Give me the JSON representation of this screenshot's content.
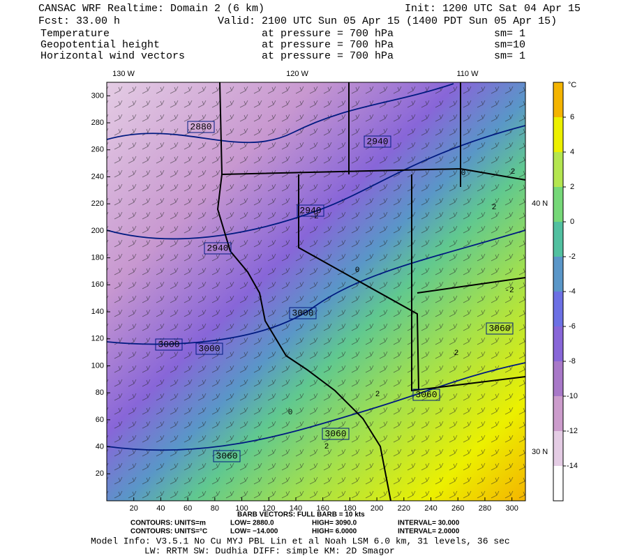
{
  "header": {
    "title": "CANSAC WRF Realtime: Domain 2  (6 km)",
    "init": "Init: 1200 UTC Sat 04 Apr 15",
    "fcst": "Fcst:   33.00 h",
    "valid": "Valid: 2100 UTC Sun 05 Apr 15 (1400 PDT Sun 05 Apr 15)",
    "fields": [
      {
        "name": "Temperature",
        "level": "at pressure =  700 hPa",
        "smooth": "sm= 1"
      },
      {
        "name": "Geopotential height",
        "level": "at pressure =  700 hPa",
        "smooth": "sm=10"
      },
      {
        "name": "Horizontal wind vectors",
        "level": "at pressure =  700 hPa",
        "smooth": "sm= 1"
      }
    ]
  },
  "map": {
    "xlim": [
      0,
      310
    ],
    "ylim": [
      0,
      310
    ],
    "xticks": [
      20,
      40,
      60,
      80,
      100,
      120,
      140,
      160,
      180,
      200,
      220,
      240,
      260,
      280,
      300
    ],
    "yticks": [
      20,
      40,
      60,
      80,
      100,
      120,
      140,
      160,
      180,
      200,
      220,
      240,
      260,
      280,
      300
    ],
    "longitudes": [
      "130 W",
      "120 W",
      "110 W"
    ],
    "latitudes": [
      "40 N",
      "30 N"
    ],
    "height_labels": [
      "2880",
      "2940",
      "2940",
      "2940",
      "3000",
      "3000",
      "3000",
      "3060",
      "3060",
      "3060",
      "3060"
    ],
    "temperature_labels": [
      "0",
      "0",
      "2",
      "2",
      "2",
      "2",
      "-2",
      "-2",
      "2",
      "0"
    ]
  },
  "colorbar": {
    "unit": "°C",
    "clim": [
      -16,
      8
    ],
    "ticks": [
      6,
      4,
      2,
      0,
      -2,
      -4,
      -6,
      -8,
      -10,
      -12,
      -14
    ],
    "colors": [
      "#ffffff",
      "#e4cce4",
      "#cc9ccc",
      "#a878c8",
      "#8866d8",
      "#6c70e4",
      "#5a96c8",
      "#52c0a0",
      "#76d878",
      "#b4e650",
      "#ecf000",
      "#f4b400"
    ]
  },
  "footer": {
    "barbs": "BARB VECTORS:  FULL BARB = 10 kts",
    "contours": [
      [
        "CONTOURS:  UNITS=m",
        "LOW= 2880.0",
        "HIGH= 3090.0",
        "INTERVAL=  30.000"
      ],
      [
        "CONTOURS:  UNITS=°C",
        "LOW= −14.000",
        "HIGH=  6.0000",
        "INTERVAL=  2.0000"
      ]
    ],
    "model_info": "Model Info: V3.5.1    No Cu    MYJ PBL  Lin et al    Noah LSM  6.0 km,  31 levels,   36 sec",
    "model_info2": "LW: RRTM  SW: Dudhia   DIFF: simple  KM: 2D Smagor"
  }
}
